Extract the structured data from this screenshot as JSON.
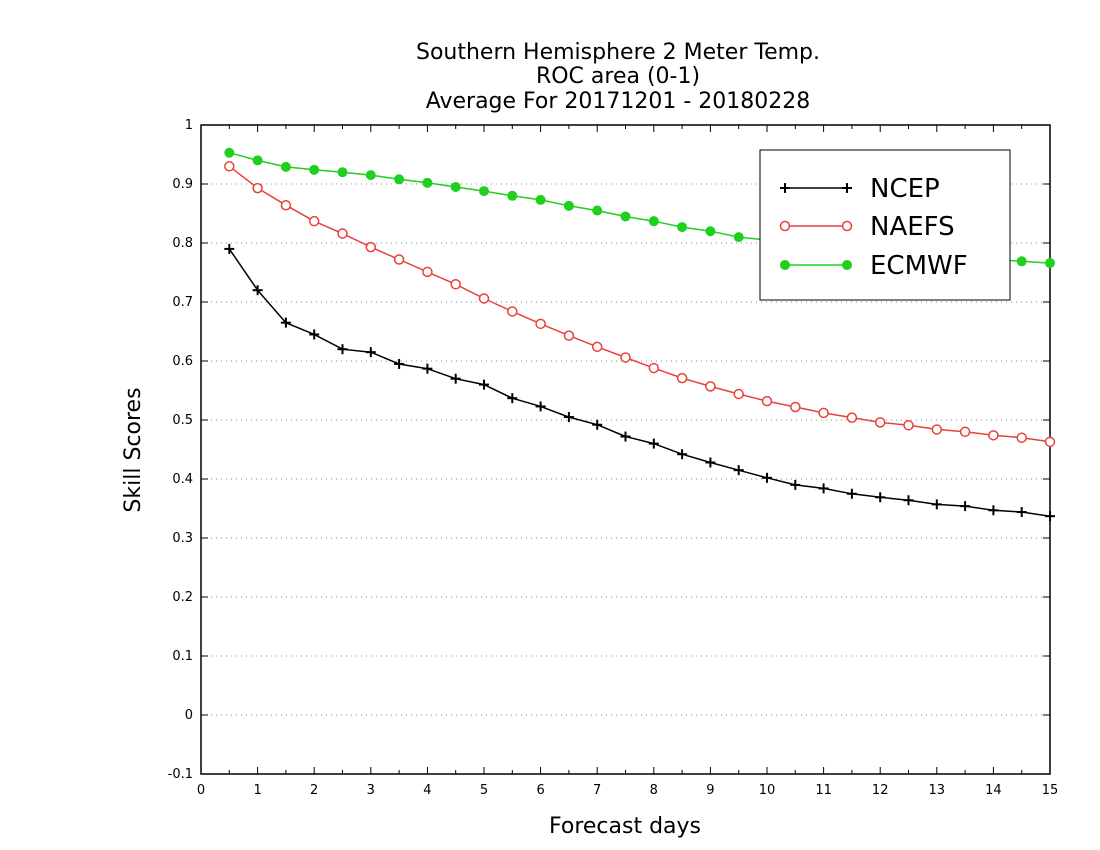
{
  "chart_data": {
    "type": "line",
    "title": [
      "Southern Hemisphere 2 Meter Temp.",
      "ROC area (0-1)",
      "Average For 20171201 - 20180228"
    ],
    "xlabel": "Forecast days",
    "ylabel": "Skill Scores",
    "xlim": [
      0,
      15
    ],
    "ylim": [
      -0.1,
      1
    ],
    "xticks": [
      "0",
      "1",
      "2",
      "3",
      "4",
      "5",
      "6",
      "7",
      "8",
      "9",
      "10",
      "11",
      "12",
      "13",
      "14",
      "15"
    ],
    "yticks": [
      "-0.1",
      "0",
      "0.1",
      "0.2",
      "0.3",
      "0.4",
      "0.5",
      "0.6",
      "0.7",
      "0.8",
      "0.9",
      "1"
    ],
    "grid": "horizontal-dotted",
    "legend_position": "top-right",
    "x": [
      0.5,
      1,
      1.5,
      2,
      2.5,
      3,
      3.5,
      4,
      4.5,
      5,
      5.5,
      6,
      6.5,
      7,
      7.5,
      8,
      8.5,
      9,
      9.5,
      10,
      10.5,
      11,
      11.5,
      12,
      12.5,
      13,
      13.5,
      14,
      14.5,
      15
    ],
    "series": [
      {
        "name": "NCEP",
        "color": "#000000",
        "marker": "plus",
        "values": [
          0.79,
          0.72,
          0.665,
          0.645,
          0.62,
          0.615,
          0.595,
          0.587,
          0.57,
          0.56,
          0.537,
          0.523,
          0.505,
          0.492,
          0.472,
          0.46,
          0.442,
          0.428,
          0.415,
          0.402,
          0.39,
          0.384,
          0.375,
          0.369,
          0.364,
          0.357,
          0.354,
          0.347,
          0.344,
          0.337
        ]
      },
      {
        "name": "NAEFS",
        "color": "#e8413c",
        "marker": "open-circle",
        "values": [
          0.93,
          0.893,
          0.864,
          0.837,
          0.816,
          0.793,
          0.772,
          0.751,
          0.73,
          0.706,
          0.684,
          0.663,
          0.643,
          0.624,
          0.606,
          0.588,
          0.571,
          0.557,
          0.544,
          0.532,
          0.522,
          0.512,
          0.504,
          0.496,
          0.491,
          0.484,
          0.48,
          0.474,
          0.47,
          0.463
        ]
      },
      {
        "name": "ECMWF",
        "color": "#1fd01f",
        "marker": "filled-circle",
        "values": [
          0.953,
          0.94,
          0.929,
          0.924,
          0.92,
          0.915,
          0.908,
          0.902,
          0.895,
          0.888,
          0.88,
          0.873,
          0.863,
          0.855,
          0.845,
          0.837,
          0.827,
          0.82,
          0.81,
          0.805,
          0.8,
          0.795,
          0.791,
          0.787,
          0.783,
          0.778,
          0.775,
          0.772,
          0.769,
          0.766
        ]
      }
    ]
  }
}
